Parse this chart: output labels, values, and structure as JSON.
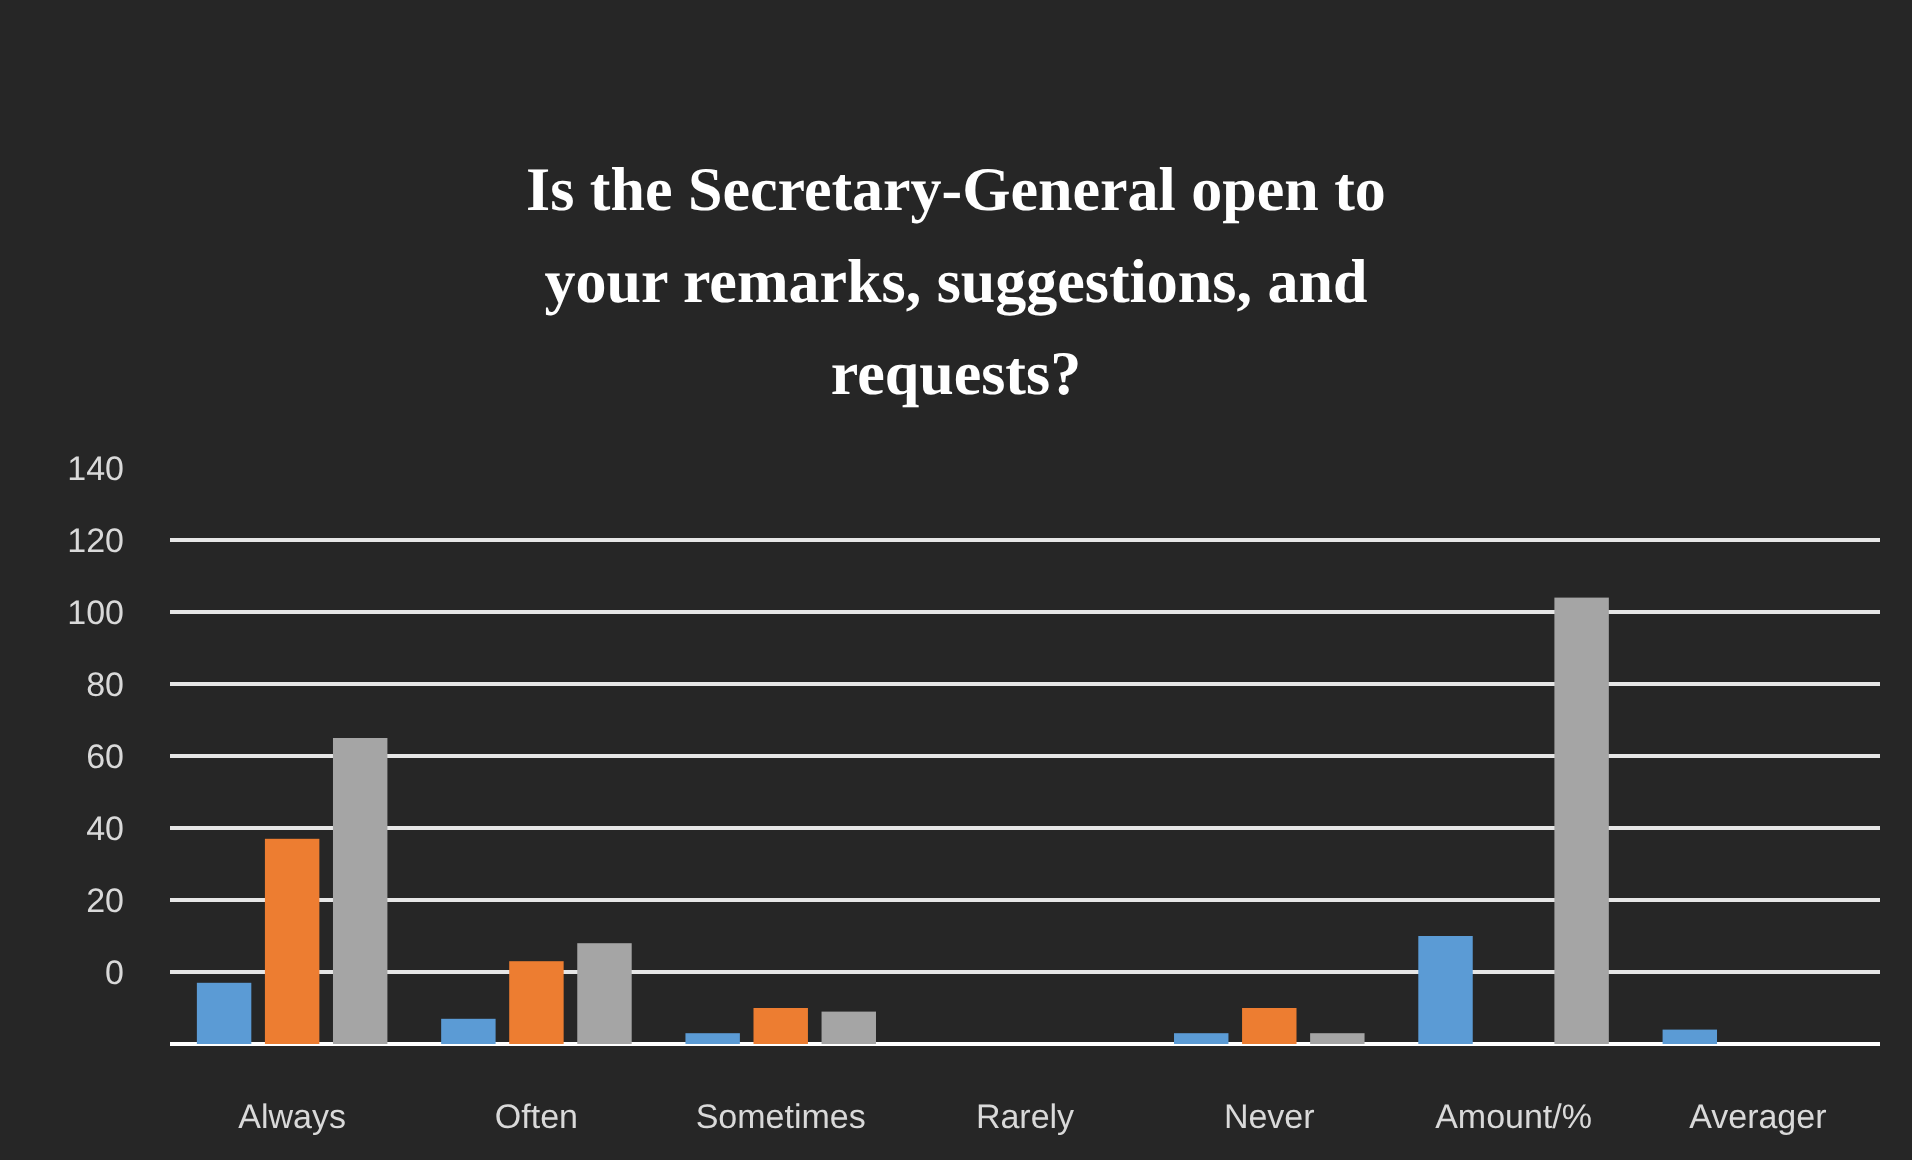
{
  "chart_data": {
    "type": "bar",
    "title": "Is the Secretary-General open to your remarks, suggestions, and requests?",
    "categories": [
      "Always",
      "Often",
      "Sometimes",
      "Rarely",
      "Never",
      "Amount/%",
      "Averager"
    ],
    "series": [
      {
        "color": "#5b9bd5",
        "base": [
          -20,
          -20,
          -20,
          null,
          -20,
          -20,
          -20
        ],
        "values": [
          17,
          7,
          3,
          null,
          3,
          30,
          4
        ]
      },
      {
        "color": "#ed7d31",
        "base": [
          -20,
          -20,
          -20,
          null,
          -20,
          null,
          null
        ],
        "values": [
          57,
          23,
          10,
          null,
          10,
          null,
          null
        ]
      },
      {
        "color": "#a5a5a5",
        "base": [
          -20,
          -20,
          -20,
          null,
          -20,
          -20,
          null
        ],
        "values": [
          85,
          28,
          9,
          null,
          3,
          124,
          null
        ]
      }
    ],
    "ylim": [
      -20,
      140
    ],
    "yticks": [
      0,
      20,
      40,
      60,
      80,
      100,
      120,
      140
    ],
    "grid": "y"
  }
}
